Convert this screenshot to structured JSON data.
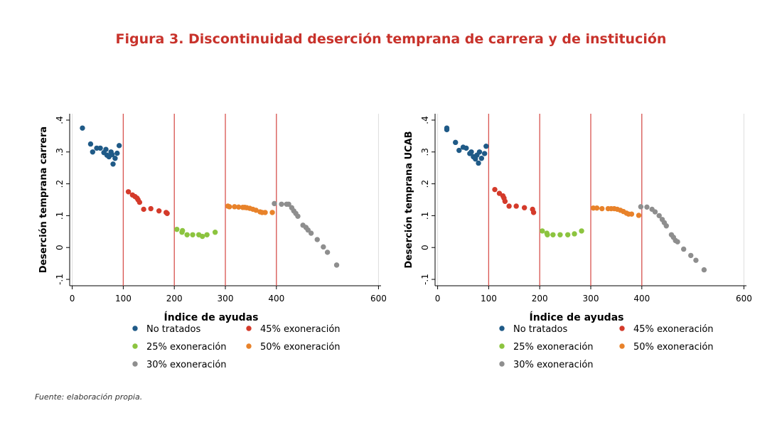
{
  "figure": {
    "title": "Figura 3. Discontinuidad deserción temprana de carrera y de institución",
    "source": "Fuente: elaboración propia."
  },
  "colors": {
    "no_tratados": "#1f5a87",
    "exon_45": "#d43a2a",
    "exon_25": "#8cc43f",
    "exon_50": "#e8822a",
    "exon_30": "#8e8e8e",
    "cutoff_line": "#d9534f",
    "gridline": "#dddddd",
    "title": "#c8322b"
  },
  "chart_data": [
    {
      "type": "scatter",
      "xlabel": "Índice de ayudas",
      "ylabel": "Deserción temprana carrera",
      "xlim": [
        -5,
        605
      ],
      "ylim": [
        -0.12,
        0.42
      ],
      "xticks": [
        0,
        100,
        200,
        300,
        400,
        600
      ],
      "xtick_labels": [
        "0",
        "100",
        "200",
        "300",
        "400",
        "600"
      ],
      "yticks": [
        -0.1,
        0,
        0.1,
        0.2,
        0.3,
        0.4
      ],
      "ytick_labels": [
        "-.1",
        "0",
        ".1",
        ".2",
        ".3",
        ".4"
      ],
      "cutoffs": [
        100,
        200,
        300,
        400
      ],
      "grid": true,
      "legend_position": "bottom",
      "legend_labels": [
        "No tratados",
        "45% exoneración",
        "25% exoneración",
        "50% exoneración",
        "30% exoneración"
      ],
      "series": [
        {
          "name": "No tratados",
          "color": "#1f5a87",
          "points": [
            [
              20,
              0.375
            ],
            [
              36,
              0.325
            ],
            [
              40,
              0.3
            ],
            [
              48,
              0.312
            ],
            [
              55,
              0.312
            ],
            [
              62,
              0.298
            ],
            [
              66,
              0.308
            ],
            [
              68,
              0.29
            ],
            [
              72,
              0.285
            ],
            [
              76,
              0.3
            ],
            [
              78,
              0.292
            ],
            [
              80,
              0.262
            ],
            [
              84,
              0.28
            ],
            [
              88,
              0.296
            ],
            [
              92,
              0.32
            ]
          ]
        },
        {
          "name": "45% exoneración",
          "color": "#d43a2a",
          "points": [
            [
              110,
              0.175
            ],
            [
              118,
              0.165
            ],
            [
              123,
              0.16
            ],
            [
              127,
              0.155
            ],
            [
              129,
              0.15
            ],
            [
              132,
              0.142
            ],
            [
              140,
              0.12
            ],
            [
              154,
              0.122
            ],
            [
              170,
              0.115
            ],
            [
              184,
              0.11
            ],
            [
              186,
              0.107
            ]
          ]
        },
        {
          "name": "25% exoneración",
          "color": "#8cc43f",
          "points": [
            [
              205,
              0.057
            ],
            [
              215,
              0.048
            ],
            [
              216,
              0.053
            ],
            [
              225,
              0.04
            ],
            [
              236,
              0.04
            ],
            [
              248,
              0.04
            ],
            [
              255,
              0.035
            ],
            [
              264,
              0.04
            ],
            [
              280,
              0.048
            ]
          ]
        },
        {
          "name": "50% exoneración",
          "color": "#e8822a",
          "points": [
            [
              305,
              0.13
            ],
            [
              308,
              0.128
            ],
            [
              318,
              0.128
            ],
            [
              326,
              0.127
            ],
            [
              334,
              0.126
            ],
            [
              338,
              0.126
            ],
            [
              342,
              0.125
            ],
            [
              348,
              0.123
            ],
            [
              354,
              0.12
            ],
            [
              360,
              0.117
            ],
            [
              368,
              0.112
            ],
            [
              372,
              0.11
            ],
            [
              378,
              0.11
            ],
            [
              392,
              0.11
            ]
          ]
        },
        {
          "name": "30% exoneración",
          "color": "#8e8e8e",
          "points": [
            [
              396,
              0.138
            ],
            [
              410,
              0.136
            ],
            [
              420,
              0.136
            ],
            [
              424,
              0.136
            ],
            [
              430,
              0.125
            ],
            [
              434,
              0.115
            ],
            [
              438,
              0.107
            ],
            [
              442,
              0.098
            ],
            [
              452,
              0.07
            ],
            [
              458,
              0.063
            ],
            [
              462,
              0.055
            ],
            [
              468,
              0.045
            ],
            [
              480,
              0.025
            ],
            [
              492,
              0.002
            ],
            [
              500,
              -0.015
            ],
            [
              518,
              -0.055
            ]
          ]
        }
      ]
    },
    {
      "type": "scatter",
      "xlabel": "Índice de ayudas",
      "ylabel": "Deserción temprana UCAB",
      "xlim": [
        -5,
        605
      ],
      "ylim": [
        -0.12,
        0.42
      ],
      "xticks": [
        0,
        100,
        200,
        300,
        400,
        600
      ],
      "xtick_labels": [
        "0",
        "100",
        "200",
        "300",
        "400",
        "600"
      ],
      "yticks": [
        -0.1,
        0,
        0.1,
        0.2,
        0.3,
        0.4
      ],
      "ytick_labels": [
        "-.1",
        "0",
        ".1",
        ".2",
        ".3",
        ".4"
      ],
      "cutoffs": [
        100,
        200,
        300,
        400
      ],
      "grid": true,
      "legend_position": "bottom",
      "legend_labels": [
        "No tratados",
        "45% exoneración",
        "25% exoneración",
        "50% exoneración",
        "30% exoneración"
      ],
      "series": [
        {
          "name": "No tratados",
          "color": "#1f5a87",
          "points": [
            [
              18,
              0.375
            ],
            [
              18,
              0.37
            ],
            [
              35,
              0.33
            ],
            [
              42,
              0.305
            ],
            [
              50,
              0.315
            ],
            [
              56,
              0.312
            ],
            [
              63,
              0.295
            ],
            [
              66,
              0.3
            ],
            [
              70,
              0.285
            ],
            [
              74,
              0.278
            ],
            [
              77,
              0.29
            ],
            [
              80,
              0.265
            ],
            [
              82,
              0.3
            ],
            [
              86,
              0.28
            ],
            [
              92,
              0.295
            ],
            [
              95,
              0.318
            ]
          ]
        },
        {
          "name": "45% exoneración",
          "color": "#d43a2a",
          "points": [
            [
              112,
              0.182
            ],
            [
              121,
              0.17
            ],
            [
              128,
              0.162
            ],
            [
              130,
              0.155
            ],
            [
              132,
              0.145
            ],
            [
              140,
              0.13
            ],
            [
              154,
              0.13
            ],
            [
              170,
              0.125
            ],
            [
              186,
              0.12
            ],
            [
              188,
              0.11
            ]
          ]
        },
        {
          "name": "25% exoneración",
          "color": "#8cc43f",
          "points": [
            [
              205,
              0.052
            ],
            [
              214,
              0.045
            ],
            [
              215,
              0.04
            ],
            [
              226,
              0.04
            ],
            [
              240,
              0.04
            ],
            [
              255,
              0.04
            ],
            [
              268,
              0.043
            ],
            [
              282,
              0.052
            ]
          ]
        },
        {
          "name": "50% exoneración",
          "color": "#e8822a",
          "points": [
            [
              305,
              0.124
            ],
            [
              312,
              0.124
            ],
            [
              322,
              0.122
            ],
            [
              334,
              0.122
            ],
            [
              340,
              0.122
            ],
            [
              346,
              0.122
            ],
            [
              352,
              0.12
            ],
            [
              358,
              0.117
            ],
            [
              364,
              0.113
            ],
            [
              370,
              0.108
            ],
            [
              374,
              0.105
            ],
            [
              380,
              0.105
            ],
            [
              394,
              0.101
            ]
          ]
        },
        {
          "name": "30% exoneración",
          "color": "#8e8e8e",
          "points": [
            [
              398,
              0.128
            ],
            [
              410,
              0.127
            ],
            [
              420,
              0.12
            ],
            [
              426,
              0.112
            ],
            [
              434,
              0.1
            ],
            [
              440,
              0.088
            ],
            [
              444,
              0.078
            ],
            [
              448,
              0.068
            ],
            [
              458,
              0.04
            ],
            [
              462,
              0.032
            ],
            [
              466,
              0.022
            ],
            [
              470,
              0.018
            ],
            [
              482,
              -0.005
            ],
            [
              496,
              -0.025
            ],
            [
              506,
              -0.04
            ],
            [
              522,
              -0.07
            ]
          ]
        }
      ]
    }
  ]
}
